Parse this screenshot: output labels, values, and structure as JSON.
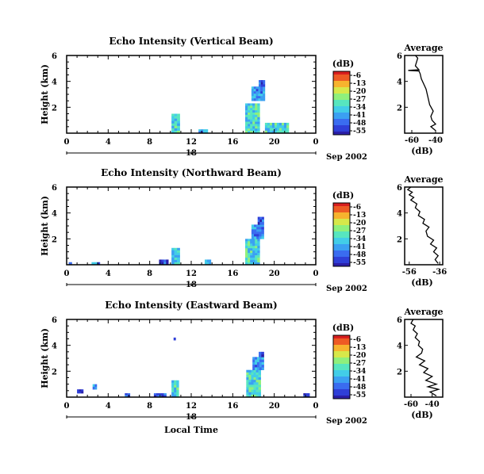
{
  "colors": {
    "scale": [
      "#2b1fa8",
      "#2f3fd8",
      "#3a6cf0",
      "#3ba0f2",
      "#42cde8",
      "#57e6bf",
      "#8ff07c",
      "#d7e84a",
      "#f7b32e",
      "#ee5a24",
      "#d81e1e"
    ]
  },
  "chart_data": [
    {
      "type": "heatmap",
      "title": "Echo Intensity (Vertical Beam)",
      "ylabel": "Height (km)",
      "xlabel": "",
      "ylim": [
        0,
        6
      ],
      "y_ticks": [
        "2",
        "4",
        "6"
      ],
      "xlim": [
        0,
        24
      ],
      "x_ticks": [
        "0",
        "4",
        "8",
        "12",
        "16",
        "20",
        "0"
      ],
      "date_label": "18",
      "month_label": "Sep 2002",
      "colorbar": {
        "unit": "(dB)",
        "ticks": [
          "-6",
          "-13",
          "-20",
          "-27",
          "-34",
          "-41",
          "-48",
          "-55"
        ],
        "range": [
          -55,
          -6
        ]
      },
      "echoes": [
        {
          "t": [
            10.1,
            10.9
          ],
          "h": [
            0,
            1.5
          ],
          "db": -34
        },
        {
          "t": [
            12.7,
            13.6
          ],
          "h": [
            0,
            0.3
          ],
          "db": -41
        },
        {
          "t": [
            17.2,
            18.6
          ],
          "h": [
            0,
            2.3
          ],
          "db": -34
        },
        {
          "t": [
            17.8,
            19.1
          ],
          "h": [
            2.5,
            3.6
          ],
          "db": -41
        },
        {
          "t": [
            18.5,
            19.1
          ],
          "h": [
            3.6,
            4.1
          ],
          "db": -48
        },
        {
          "t": [
            19.1,
            21.4
          ],
          "h": [
            0,
            0.8
          ],
          "db": -34
        }
      ],
      "average": {
        "title": "Average",
        "xlabel": "(dB)",
        "x_ticks": [
          "-60",
          "-40"
        ],
        "xlim": [
          -66,
          -34
        ],
        "ylim": [
          0,
          6
        ],
        "y_ticks": [
          "2",
          "4",
          "6"
        ],
        "points": [
          [
            -40,
            0.2
          ],
          [
            -44,
            0.5
          ],
          [
            -40,
            0.7
          ],
          [
            -43,
            1.0
          ],
          [
            -44,
            1.3
          ],
          [
            -42,
            1.7
          ],
          [
            -45,
            2.2
          ],
          [
            -46,
            2.6
          ],
          [
            -47,
            3.0
          ],
          [
            -48,
            3.4
          ],
          [
            -50,
            3.8
          ],
          [
            -52,
            4.2
          ],
          [
            -53,
            4.6
          ],
          [
            -54,
            4.8
          ],
          [
            -63,
            4.85
          ],
          [
            -54,
            4.9
          ],
          [
            -57,
            5.2
          ],
          [
            -56,
            5.5
          ],
          [
            -55,
            5.8
          ],
          [
            -57,
            6.0
          ]
        ]
      }
    },
    {
      "type": "heatmap",
      "title": "Echo Intensity (Northward Beam)",
      "ylabel": "Height (km)",
      "xlabel": "",
      "ylim": [
        0,
        6
      ],
      "y_ticks": [
        "2",
        "4",
        "6"
      ],
      "xlim": [
        0,
        24
      ],
      "x_ticks": [
        "0",
        "4",
        "8",
        "12",
        "16",
        "20",
        "0"
      ],
      "date_label": "18",
      "month_label": "Sep 2002",
      "colorbar": {
        "unit": "(dB)",
        "ticks": [
          "-6",
          "-13",
          "-20",
          "-27",
          "-34",
          "-41",
          "-48",
          "-55"
        ],
        "range": [
          -55,
          -6
        ]
      },
      "echoes": [
        {
          "t": [
            0.2,
            0.5
          ],
          "h": [
            0,
            0.2
          ],
          "db": -48
        },
        {
          "t": [
            2.4,
            3.2
          ],
          "h": [
            0,
            0.2
          ],
          "db": -41
        },
        {
          "t": [
            8.9,
            9.8
          ],
          "h": [
            0,
            0.4
          ],
          "db": -48
        },
        {
          "t": [
            10.1,
            10.9
          ],
          "h": [
            0,
            1.3
          ],
          "db": -34
        },
        {
          "t": [
            13.3,
            13.9
          ],
          "h": [
            0,
            0.4
          ],
          "db": -41
        },
        {
          "t": [
            17.2,
            18.6
          ],
          "h": [
            0,
            2.0
          ],
          "db": -34
        },
        {
          "t": [
            17.8,
            19.0
          ],
          "h": [
            2.0,
            3.1
          ],
          "db": -41
        },
        {
          "t": [
            18.4,
            19.0
          ],
          "h": [
            3.1,
            3.7
          ],
          "db": -48
        }
      ],
      "average": {
        "title": "Average",
        "xlabel": "(dB)",
        "x_ticks": [
          "-56",
          "-36"
        ],
        "xlim": [
          -59,
          -34
        ],
        "ylim": [
          0,
          6
        ],
        "y_ticks": [
          "2",
          "4",
          "6"
        ],
        "points": [
          [
            -37,
            0.1
          ],
          [
            -39,
            0.4
          ],
          [
            -37,
            0.7
          ],
          [
            -40,
            1.0
          ],
          [
            -38,
            1.3
          ],
          [
            -42,
            1.6
          ],
          [
            -40,
            1.9
          ],
          [
            -44,
            2.2
          ],
          [
            -45,
            2.6
          ],
          [
            -43,
            2.9
          ],
          [
            -47,
            3.2
          ],
          [
            -46,
            3.5
          ],
          [
            -50,
            3.8
          ],
          [
            -49,
            4.1
          ],
          [
            -52,
            4.4
          ],
          [
            -51,
            4.7
          ],
          [
            -55,
            5.0
          ],
          [
            -53,
            5.2
          ],
          [
            -56,
            5.4
          ],
          [
            -54,
            5.6
          ],
          [
            -57,
            5.8
          ],
          [
            -55,
            6.0
          ]
        ]
      }
    },
    {
      "type": "heatmap",
      "title": "Echo Intensity (Eastward Beam)",
      "ylabel": "Height (km)",
      "xlabel": "Local Time",
      "ylim": [
        0,
        6
      ],
      "y_ticks": [
        "2",
        "4",
        "6"
      ],
      "xlim": [
        0,
        24
      ],
      "x_ticks": [
        "0",
        "4",
        "8",
        "12",
        "16",
        "20",
        "0"
      ],
      "date_label": "18",
      "month_label": "Sep 2002",
      "colorbar": {
        "unit": "(dB)",
        "ticks": [
          "-6",
          "-13",
          "-20",
          "-27",
          "-34",
          "-41",
          "-48",
          "-55"
        ],
        "range": [
          -55,
          -6
        ]
      },
      "echoes": [
        {
          "t": [
            1.0,
            1.6
          ],
          "h": [
            0.3,
            0.6
          ],
          "db": -48
        },
        {
          "t": [
            2.5,
            2.9
          ],
          "h": [
            0.6,
            1.0
          ],
          "db": -41
        },
        {
          "t": [
            5.6,
            6.1
          ],
          "h": [
            0,
            0.3
          ],
          "db": -48
        },
        {
          "t": [
            8.4,
            9.6
          ],
          "h": [
            0,
            0.3
          ],
          "db": -48
        },
        {
          "t": [
            10.1,
            10.8
          ],
          "h": [
            0,
            1.3
          ],
          "db": -34
        },
        {
          "t": [
            10.3,
            10.5
          ],
          "h": [
            4.4,
            4.6
          ],
          "db": -48
        },
        {
          "t": [
            17.3,
            18.7
          ],
          "h": [
            0,
            2.1
          ],
          "db": -34
        },
        {
          "t": [
            17.9,
            19.0
          ],
          "h": [
            2.1,
            3.1
          ],
          "db": -41
        },
        {
          "t": [
            18.5,
            19.0
          ],
          "h": [
            3.1,
            3.5
          ],
          "db": -48
        },
        {
          "t": [
            22.8,
            23.4
          ],
          "h": [
            0,
            0.3
          ],
          "db": -48
        }
      ],
      "average": {
        "title": "Average",
        "xlabel": "(dB)",
        "x_ticks": [
          "-60",
          "-40"
        ],
        "xlim": [
          -66,
          -30
        ],
        "ylim": [
          0,
          6
        ],
        "y_ticks": [
          "2",
          "4",
          "6"
        ],
        "points": [
          [
            -36,
            0.1
          ],
          [
            -42,
            0.4
          ],
          [
            -34,
            0.6
          ],
          [
            -44,
            0.8
          ],
          [
            -36,
            1.0
          ],
          [
            -46,
            1.3
          ],
          [
            -40,
            1.6
          ],
          [
            -48,
            1.9
          ],
          [
            -44,
            2.2
          ],
          [
            -52,
            2.5
          ],
          [
            -47,
            2.8
          ],
          [
            -55,
            3.1
          ],
          [
            -50,
            3.4
          ],
          [
            -49,
            3.7
          ],
          [
            -53,
            4.0
          ],
          [
            -52,
            4.3
          ],
          [
            -56,
            4.6
          ],
          [
            -54,
            4.9
          ],
          [
            -58,
            5.2
          ],
          [
            -56,
            5.5
          ],
          [
            -60,
            5.7
          ],
          [
            -58,
            6.0
          ]
        ]
      }
    }
  ]
}
